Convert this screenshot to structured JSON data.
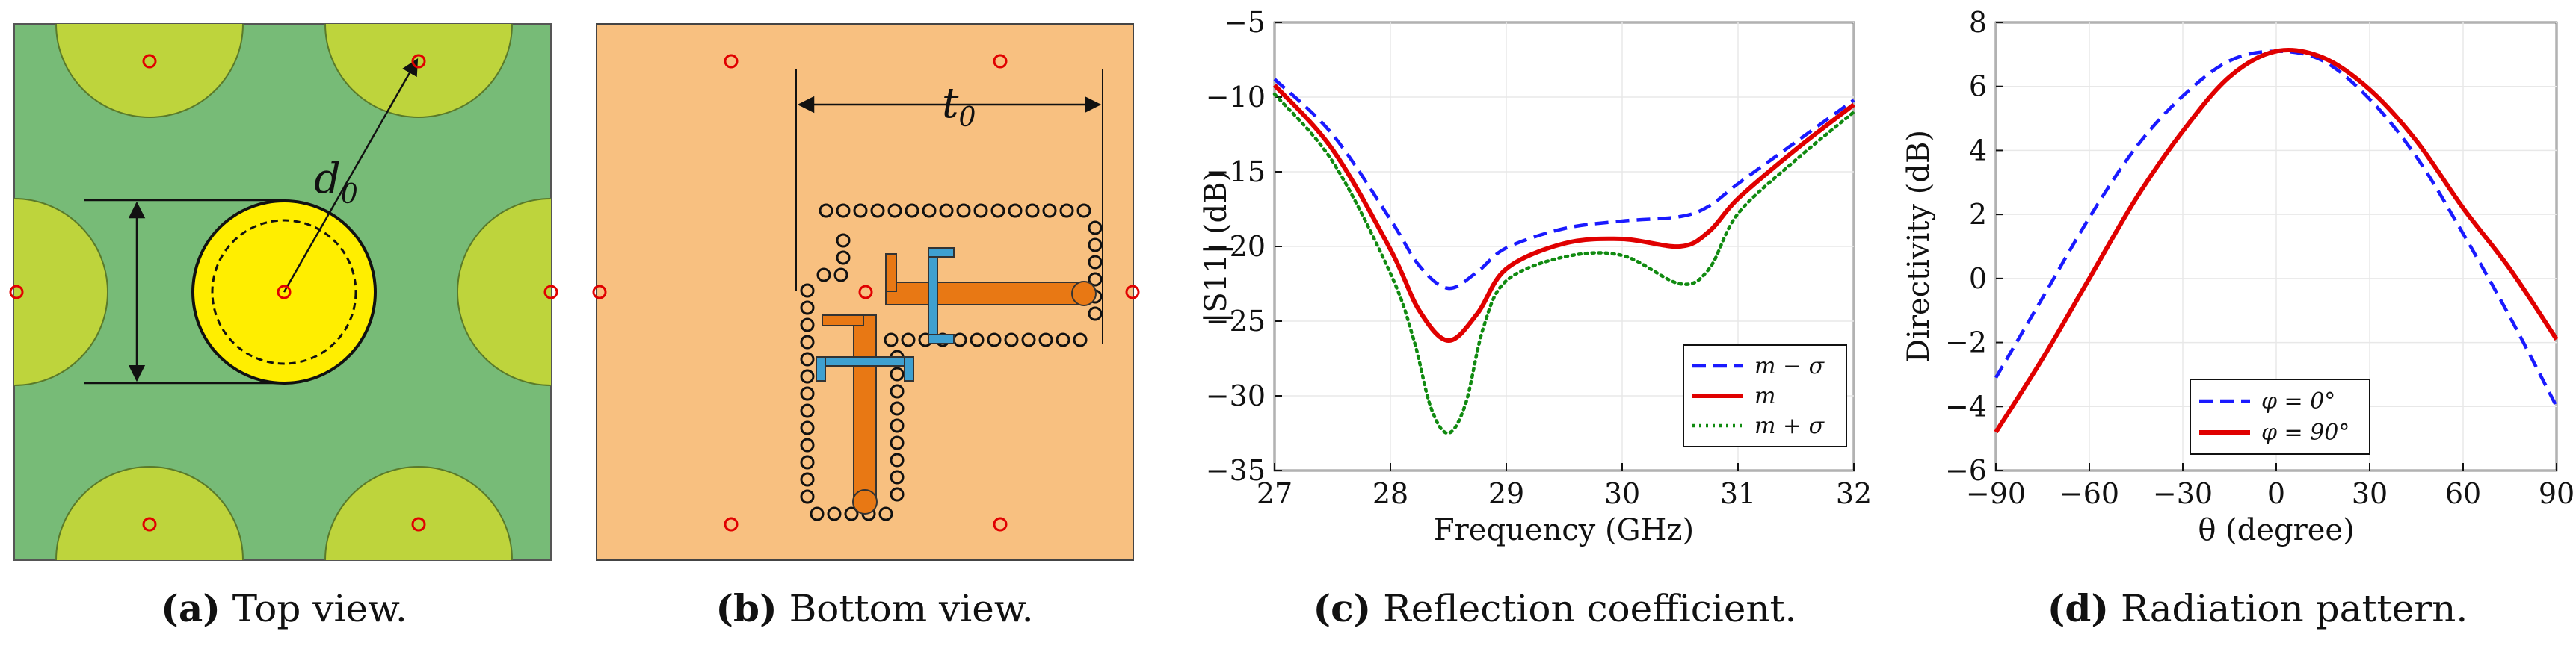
{
  "captions": [
    {
      "label": "(a)",
      "text": " Top view."
    },
    {
      "label": "(b)",
      "text": " Bottom view."
    },
    {
      "label": "(c)",
      "text": " Reflection coefficient."
    },
    {
      "label": "(d)",
      "text": " Radiation pattern."
    }
  ],
  "diagram_a": {
    "label_d0": "d",
    "label_d0_sub": "0"
  },
  "diagram_b": {
    "label_t0": "t",
    "label_t0_sub": "0"
  },
  "colors": {
    "green_bg": "#77bb77",
    "lime": "#bed43c",
    "yellow": "#ffee00",
    "peach": "#f8c080",
    "orange": "#e87814",
    "blue": "#3fa0d0",
    "red": "#e00000",
    "blue_line": "#1a1aff",
    "green_line": "#108a10"
  },
  "chart_data": [
    {
      "type": "line",
      "title": "Reflection coefficient.",
      "xlabel": "Frequency (GHz)",
      "ylabel": "|S11| (dB)",
      "xlim": [
        27,
        32
      ],
      "ylim": [
        -35,
        -5
      ],
      "xticks": [
        "27",
        "28",
        "29",
        "30",
        "31",
        "32"
      ],
      "yticks": [
        "−5",
        "−10",
        "−15",
        "−20",
        "−25",
        "−30",
        "−35"
      ],
      "legend_position": "bottom-right",
      "series": [
        {
          "name": "m − σ",
          "style": "dashed",
          "color": "#1a1aff",
          "x": [
            27,
            27.5,
            28,
            28.25,
            28.5,
            28.75,
            29,
            29.5,
            30,
            30.5,
            30.75,
            31,
            31.5,
            32
          ],
          "y": [
            -8.8,
            -12.5,
            -18.2,
            -21.3,
            -22.8,
            -21.7,
            -20.1,
            -18.8,
            -18.3,
            -18.0,
            -17.3,
            -15.8,
            -13.0,
            -10.2
          ]
        },
        {
          "name": "m",
          "style": "solid",
          "color": "#e00000",
          "x": [
            27,
            27.5,
            28,
            28.25,
            28.5,
            28.75,
            29,
            29.5,
            30,
            30.5,
            30.75,
            31,
            31.5,
            32
          ],
          "y": [
            -9.2,
            -13.5,
            -20.2,
            -24.3,
            -26.3,
            -24.5,
            -21.5,
            -19.8,
            -19.5,
            -20.0,
            -19.0,
            -16.8,
            -13.5,
            -10.5
          ]
        },
        {
          "name": "m + σ",
          "style": "dotted",
          "color": "#108a10",
          "x": [
            27,
            27.5,
            28,
            28.2,
            28.35,
            28.5,
            28.65,
            28.8,
            29,
            29.5,
            30,
            30.5,
            30.75,
            31,
            31.5,
            32
          ],
          "y": [
            -9.8,
            -14.3,
            -21.8,
            -26.2,
            -30.8,
            -32.5,
            -30.5,
            -25.5,
            -22.3,
            -20.7,
            -20.6,
            -22.5,
            -21.5,
            -17.8,
            -14.2,
            -11.0
          ]
        }
      ]
    },
    {
      "type": "line",
      "title": "Radiation pattern.",
      "xlabel": "θ (degree)",
      "ylabel": "Directivity (dB)",
      "xlim": [
        -90,
        90
      ],
      "ylim": [
        -6,
        8
      ],
      "xticks": [
        "−90",
        "−60",
        "−30",
        "0",
        "30",
        "60",
        "90"
      ],
      "yticks": [
        "8",
        "6",
        "4",
        "2",
        "0",
        "−2",
        "−4",
        "−6"
      ],
      "legend_position": "bottom-center",
      "series": [
        {
          "name": "φ = 0°",
          "style": "dashed",
          "color": "#1a1aff",
          "x": [
            -90,
            -75,
            -60,
            -45,
            -30,
            -15,
            0,
            15,
            30,
            45,
            60,
            75,
            90
          ],
          "y": [
            -3.1,
            -0.6,
            1.9,
            4.1,
            5.7,
            6.8,
            7.1,
            6.8,
            5.6,
            3.8,
            1.4,
            -1.2,
            -4.0
          ]
        },
        {
          "name": "φ = 90°",
          "style": "solid",
          "color": "#e00000",
          "x": [
            -90,
            -75,
            -60,
            -45,
            -30,
            -15,
            0,
            15,
            30,
            45,
            60,
            75,
            90
          ],
          "y": [
            -4.8,
            -2.5,
            0.0,
            2.5,
            4.6,
            6.3,
            7.1,
            6.9,
            5.9,
            4.3,
            2.2,
            0.3,
            -1.9
          ]
        }
      ]
    }
  ]
}
